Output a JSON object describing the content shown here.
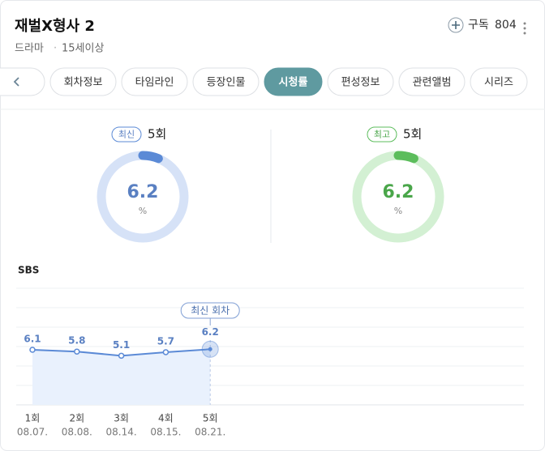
{
  "header": {
    "title": "재벌X형사 2",
    "genre": "드라마",
    "rating": "15세이상",
    "subscribe": "구독",
    "subscribers": 804
  },
  "tabs": [
    {
      "label": "회차정보",
      "active": false
    },
    {
      "label": "타임라인",
      "active": false
    },
    {
      "label": "등장인물",
      "active": false
    },
    {
      "label": "시청률",
      "active": true
    },
    {
      "label": "편성정보",
      "active": false
    },
    {
      "label": "관련앨범",
      "active": false
    },
    {
      "label": "시리즈",
      "active": false
    }
  ],
  "summary": [
    {
      "badge": "최신",
      "episode": "5회",
      "value": 6.2,
      "unit": "%",
      "color": "#5b8ad6",
      "track": "#d6e2f7",
      "text_color": "#5a80c2"
    },
    {
      "badge": "최고",
      "episode": "5회",
      "value": 6.2,
      "unit": "%",
      "color": "#5cbd5c",
      "track": "#d3f0d3",
      "text_color": "#4aa64a"
    }
  ],
  "chart_data": {
    "type": "line",
    "title": "SBS",
    "annotation": "최신 회차",
    "categories": [
      "1회",
      "2회",
      "3회",
      "4회",
      "5회"
    ],
    "dates": [
      "08.07.",
      "08.08.",
      "08.14.",
      "08.15.",
      "08.21."
    ],
    "values": [
      6.1,
      5.8,
      5.1,
      5.7,
      6.2
    ],
    "ylim": [
      -3.2,
      16.5
    ],
    "color": "#5b8ad6",
    "fill": "#e9f1fd"
  }
}
